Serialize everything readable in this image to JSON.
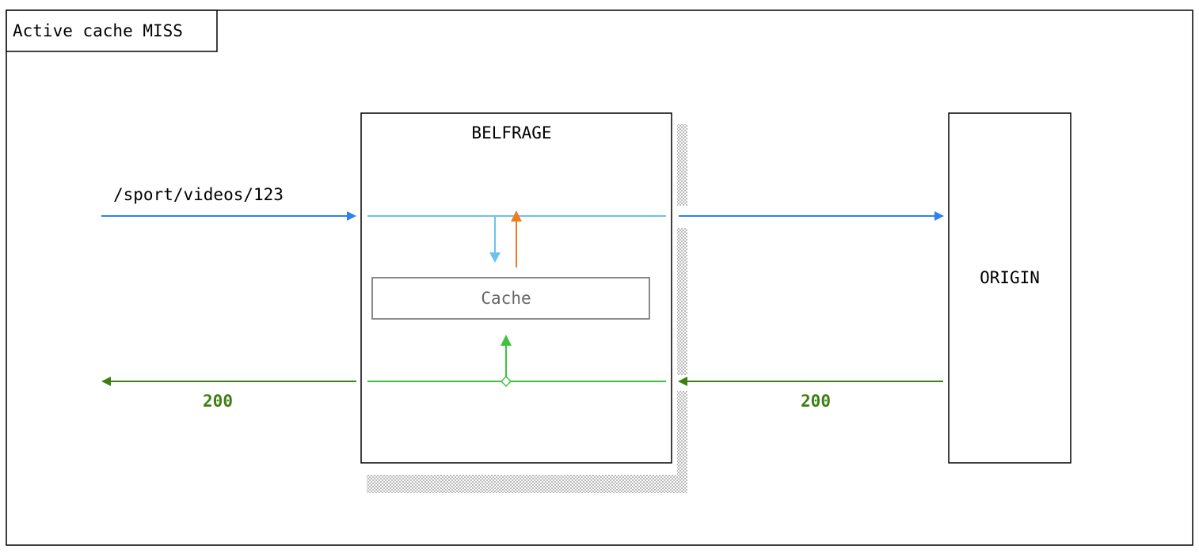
{
  "frame": {
    "title": "Active cache MISS"
  },
  "nodes": {
    "belfrage": {
      "label": "BELFRAGE"
    },
    "cache": {
      "label": "Cache"
    },
    "origin": {
      "label": "ORIGIN"
    }
  },
  "flows": {
    "request": {
      "label": "/sport/videos/123"
    },
    "response_to_client": {
      "label": "200"
    },
    "response_from_origin": {
      "label": "200"
    }
  },
  "colors": {
    "request_blue": "#2f7ff5",
    "internal_light_blue": "#6ac2f0",
    "cache_read_orange": "#f07c1c",
    "internal_green": "#3cc43c",
    "response_dark_green": "#3f7f12",
    "cache_border": "#8a8a8a",
    "cache_text": "#666666",
    "shadow": "#b8b8b8"
  }
}
